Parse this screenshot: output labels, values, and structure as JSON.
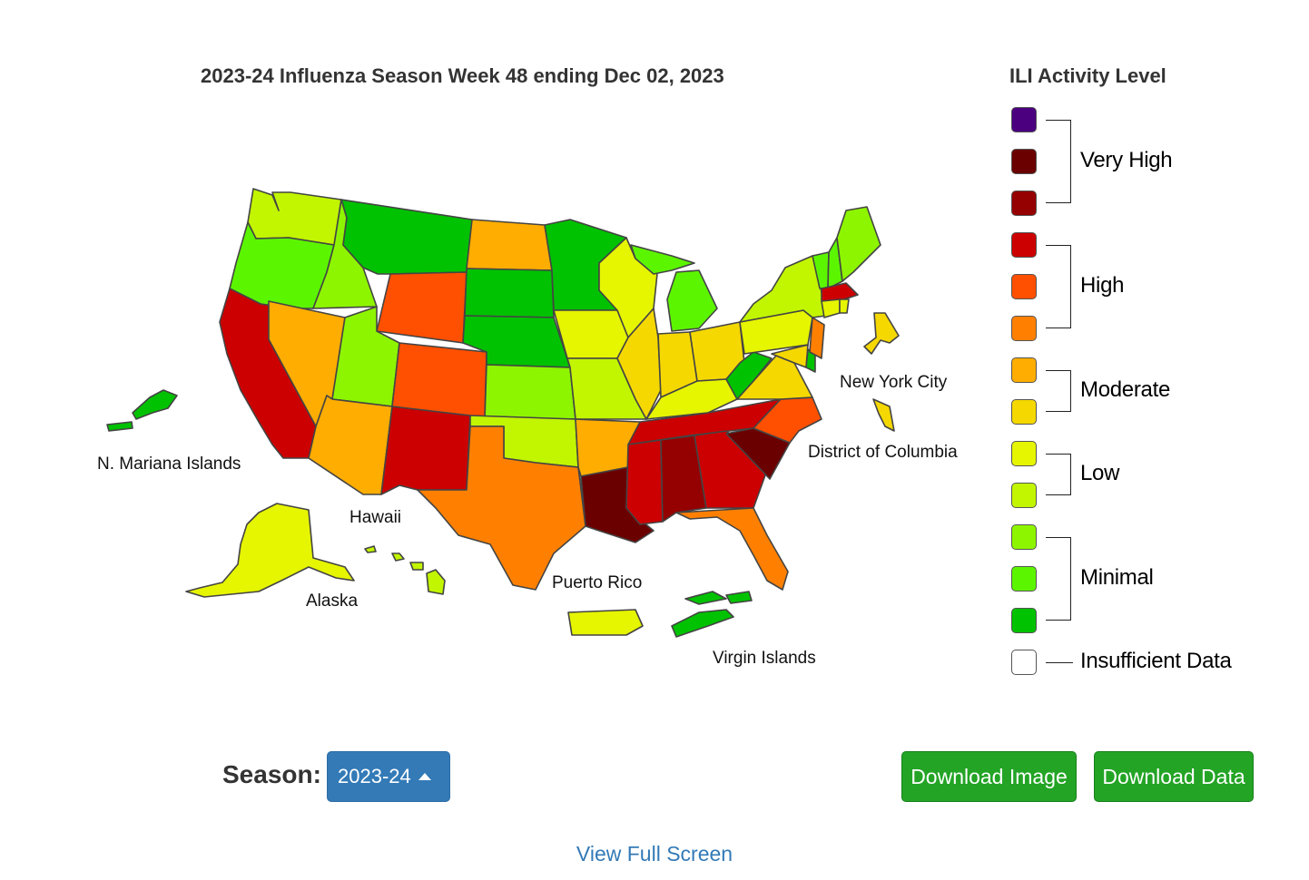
{
  "map": {
    "title": "2023-24 Influenza Season Week 48 ending Dec 02, 2023",
    "territory_labels": {
      "nmi": "N. Mariana Islands",
      "hawaii": "Hawaii",
      "alaska": "Alaska",
      "puerto_rico": "Puerto Rico",
      "virgin_islands": "Virgin Islands",
      "nyc": "New York City",
      "dc": "District of Columbia"
    },
    "level_colors": {
      "13": "#4b0080",
      "12": "#6b0000",
      "11": "#950000",
      "10": "#cc0000",
      "9": "#ff4f00",
      "8": "#ff8000",
      "7": "#ffad00",
      "6": "#f5d800",
      "5": "#e6f500",
      "4": "#c2f500",
      "3": "#8ef500",
      "2": "#5cf500",
      "1": "#00c200",
      "0": "#ffffff"
    },
    "jurisdiction_levels": {
      "WA": 4,
      "OR": 2,
      "CA": 10,
      "NV": 7,
      "ID": 3,
      "MT": 1,
      "WY": 9,
      "UT": 3,
      "CO": 9,
      "AZ": 7,
      "NM": 10,
      "ND": 7,
      "SD": 1,
      "NE": 1,
      "KS": 3,
      "OK": 4,
      "TX": 8,
      "MN": 1,
      "IA": 5,
      "MO": 4,
      "AR": 7,
      "LA": 12,
      "WI": 5,
      "IL": 6,
      "MI": 2,
      "IN": 6,
      "OH": 6,
      "KY": 5,
      "TN": 10,
      "MS": 10,
      "AL": 11,
      "GA": 10,
      "FL": 8,
      "SC": 12,
      "NC": 9,
      "VA": 6,
      "WV": 1,
      "PA": 5,
      "NY": 4,
      "VT": 2,
      "NH": 2,
      "ME": 3,
      "MA": 10,
      "CT": 5,
      "RI": 5,
      "NJ": 8,
      "DE": 1,
      "MD": 6,
      "NYC": 6,
      "DC": 6,
      "AK": 5,
      "HI": 4,
      "PR": 5,
      "VI": 1,
      "NMI": 1
    }
  },
  "legend": {
    "title": "ILI Activity Level",
    "groups": {
      "very_high": "Very High",
      "high": "High",
      "moderate": "Moderate",
      "low": "Low",
      "minimal": "Minimal",
      "insufficient": "Insufficient Data"
    }
  },
  "controls": {
    "season_label": "Season:",
    "season_value": "2023-24",
    "download_image": "Download Image",
    "download_data": "Download Data",
    "view_full_screen": "View Full Screen"
  }
}
